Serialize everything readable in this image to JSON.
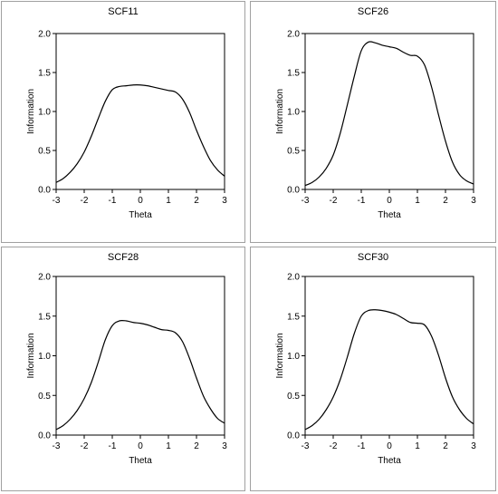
{
  "chart_data": [
    {
      "type": "line",
      "title": "SCF11",
      "xlabel": "Theta",
      "ylabel": "Information",
      "xlim": [
        -3,
        3
      ],
      "ylim": [
        0,
        2
      ],
      "xticks": [
        "-3",
        "-2",
        "-1",
        "0",
        "1",
        "2",
        "3"
      ],
      "yticks": [
        "0.0",
        "0.5",
        "1.0",
        "1.5",
        "2.0"
      ],
      "grid": false,
      "series": [
        {
          "x": [
            -3,
            -2.75,
            -2.5,
            -2.25,
            -2,
            -1.75,
            -1.5,
            -1.25,
            -1,
            -0.75,
            -0.5,
            -0.25,
            0,
            0.25,
            0.5,
            0.75,
            1,
            1.25,
            1.5,
            1.75,
            2,
            2.25,
            2.5,
            2.75,
            3
          ],
          "y": [
            0.09,
            0.14,
            0.22,
            0.33,
            0.48,
            0.68,
            0.91,
            1.13,
            1.28,
            1.32,
            1.33,
            1.34,
            1.34,
            1.33,
            1.31,
            1.29,
            1.27,
            1.25,
            1.16,
            0.99,
            0.76,
            0.55,
            0.37,
            0.25,
            0.17
          ]
        }
      ]
    },
    {
      "type": "line",
      "title": "SCF26",
      "xlabel": "Theta",
      "ylabel": "Information",
      "xlim": [
        -3,
        3
      ],
      "ylim": [
        0,
        2
      ],
      "xticks": [
        "-3",
        "-2",
        "-1",
        "0",
        "1",
        "2",
        "3"
      ],
      "yticks": [
        "0.0",
        "0.5",
        "1.0",
        "1.5",
        "2.0"
      ],
      "grid": false,
      "series": [
        {
          "x": [
            -3,
            -2.75,
            -2.5,
            -2.25,
            -2,
            -1.75,
            -1.5,
            -1.25,
            -1,
            -0.75,
            -0.5,
            -0.25,
            0,
            0.25,
            0.5,
            0.75,
            1,
            1.25,
            1.5,
            1.75,
            2,
            2.25,
            2.5,
            2.75,
            3
          ],
          "y": [
            0.05,
            0.09,
            0.16,
            0.27,
            0.44,
            0.72,
            1.08,
            1.45,
            1.78,
            1.89,
            1.88,
            1.85,
            1.83,
            1.81,
            1.76,
            1.72,
            1.71,
            1.6,
            1.32,
            0.96,
            0.62,
            0.35,
            0.19,
            0.11,
            0.07
          ]
        }
      ]
    },
    {
      "type": "line",
      "title": "SCF28",
      "xlabel": "Theta",
      "ylabel": "Information",
      "xlim": [
        -3,
        3
      ],
      "ylim": [
        0,
        2
      ],
      "xticks": [
        "-3",
        "-2",
        "-1",
        "0",
        "1",
        "2",
        "3"
      ],
      "yticks": [
        "0.0",
        "0.5",
        "1.0",
        "1.5",
        "2.0"
      ],
      "grid": false,
      "series": [
        {
          "x": [
            -3,
            -2.75,
            -2.5,
            -2.25,
            -2,
            -1.75,
            -1.5,
            -1.25,
            -1,
            -0.75,
            -0.5,
            -0.25,
            0,
            0.25,
            0.5,
            0.75,
            1,
            1.25,
            1.5,
            1.75,
            2,
            2.25,
            2.5,
            2.75,
            3
          ],
          "y": [
            0.07,
            0.12,
            0.2,
            0.31,
            0.46,
            0.66,
            0.92,
            1.2,
            1.38,
            1.44,
            1.44,
            1.42,
            1.41,
            1.39,
            1.36,
            1.33,
            1.32,
            1.29,
            1.18,
            0.97,
            0.72,
            0.49,
            0.33,
            0.21,
            0.15
          ]
        }
      ]
    },
    {
      "type": "line",
      "title": "SCF30",
      "xlabel": "Theta",
      "ylabel": "Information",
      "xlim": [
        -3,
        3
      ],
      "ylim": [
        0,
        2
      ],
      "xticks": [
        "-3",
        "-2",
        "-1",
        "0",
        "1",
        "2",
        "3"
      ],
      "yticks": [
        "0.0",
        "0.5",
        "1.0",
        "1.5",
        "2.0"
      ],
      "grid": false,
      "series": [
        {
          "x": [
            -3,
            -2.75,
            -2.5,
            -2.25,
            -2,
            -1.75,
            -1.5,
            -1.25,
            -1,
            -0.75,
            -0.5,
            -0.25,
            0,
            0.25,
            0.5,
            0.75,
            1,
            1.25,
            1.5,
            1.75,
            2,
            2.25,
            2.5,
            2.75,
            3
          ],
          "y": [
            0.07,
            0.12,
            0.2,
            0.32,
            0.48,
            0.7,
            0.98,
            1.28,
            1.5,
            1.57,
            1.58,
            1.57,
            1.55,
            1.52,
            1.47,
            1.42,
            1.41,
            1.39,
            1.25,
            1.01,
            0.72,
            0.48,
            0.32,
            0.21,
            0.14
          ]
        }
      ]
    }
  ]
}
